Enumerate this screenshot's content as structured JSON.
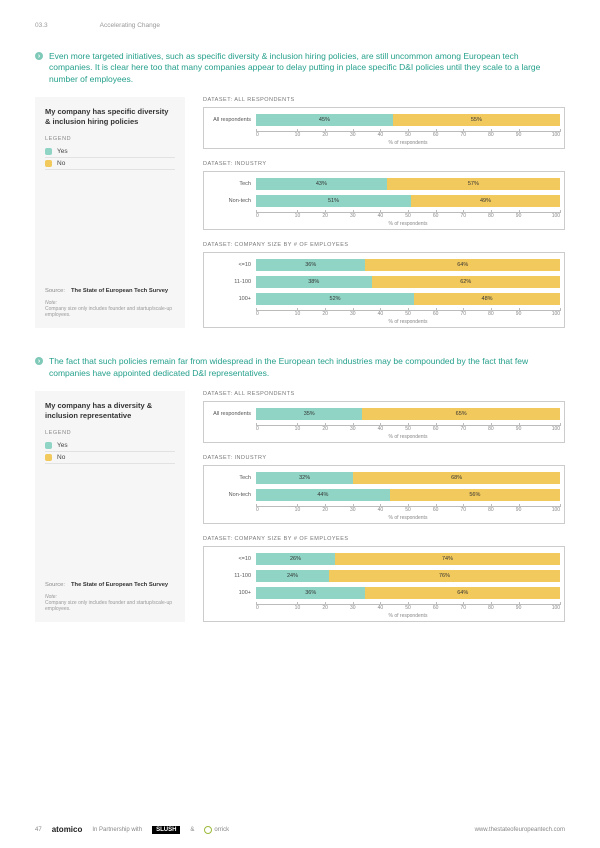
{
  "header": {
    "section": "03.3",
    "title": "Accelerating Change"
  },
  "colors": {
    "yes": "#8fd4c4",
    "no": "#f2c95c",
    "accent": "#25a08c"
  },
  "axis": {
    "ticks": [
      "0",
      "10",
      "20",
      "30",
      "40",
      "50",
      "60",
      "70",
      "80",
      "90",
      "100"
    ],
    "label": "% of respondents"
  },
  "legend": {
    "header": "LEGEND",
    "items": [
      {
        "label": "Yes",
        "key": "yes"
      },
      {
        "label": "No",
        "key": "no"
      }
    ]
  },
  "source": {
    "label": "Source:",
    "name": "The State of European Tech Survey"
  },
  "note": "Company size only includes founder and startup/scale-up employees.",
  "section1": {
    "intro": "Even more targeted initiatives, such as specific diversity & inclusion hiring policies, are still uncommon among European tech companies. It is clear here too that many companies appear to delay putting in place specific D&I policies until they scale to a large number of employees.",
    "panel_title": "My company has specific diversity & inclusion hiring policies",
    "datasets": [
      {
        "header": "DATASET: ALL RESPONDENTS",
        "rows": [
          {
            "label": "All respondents",
            "yes": 45,
            "no": 55
          }
        ]
      },
      {
        "header": "DATASET: INDUSTRY",
        "rows": [
          {
            "label": "Tech",
            "yes": 43,
            "no": 57
          },
          {
            "label": "Non-tech",
            "yes": 51,
            "no": 49
          }
        ]
      },
      {
        "header": "DATASET: COMPANY SIZE BY # OF EMPLOYEES",
        "rows": [
          {
            "label": "<=10",
            "yes": 36,
            "no": 64
          },
          {
            "label": "11-100",
            "yes": 38,
            "no": 62
          },
          {
            "label": "100+",
            "yes": 52,
            "no": 48
          }
        ]
      }
    ]
  },
  "section2": {
    "intro": "The fact that such policies remain far from widespread in the European tech industries may be compounded by the fact that few companies have appointed dedicated D&I representatives.",
    "panel_title": "My company has a diversity & inclusion representative",
    "datasets": [
      {
        "header": "DATASET: ALL RESPONDENTS",
        "rows": [
          {
            "label": "All respondents",
            "yes": 35,
            "no": 65
          }
        ]
      },
      {
        "header": "DATASET: INDUSTRY",
        "rows": [
          {
            "label": "Tech",
            "yes": 32,
            "no": 68
          },
          {
            "label": "Non-tech",
            "yes": 44,
            "no": 56
          }
        ]
      },
      {
        "header": "DATASET: COMPANY SIZE BY # OF EMPLOYEES",
        "rows": [
          {
            "label": "<=10",
            "yes": 26,
            "no": 74
          },
          {
            "label": "11-100",
            "yes": 24,
            "no": 76
          },
          {
            "label": "100+",
            "yes": 36,
            "no": 64
          }
        ]
      }
    ]
  },
  "footer": {
    "page": "47",
    "brand": "atomico",
    "partnership": "In Partnership with",
    "slush": "SLUSH",
    "amp": "&",
    "orrick": "orrick",
    "url": "www.thestateofeuropeantech.com"
  }
}
